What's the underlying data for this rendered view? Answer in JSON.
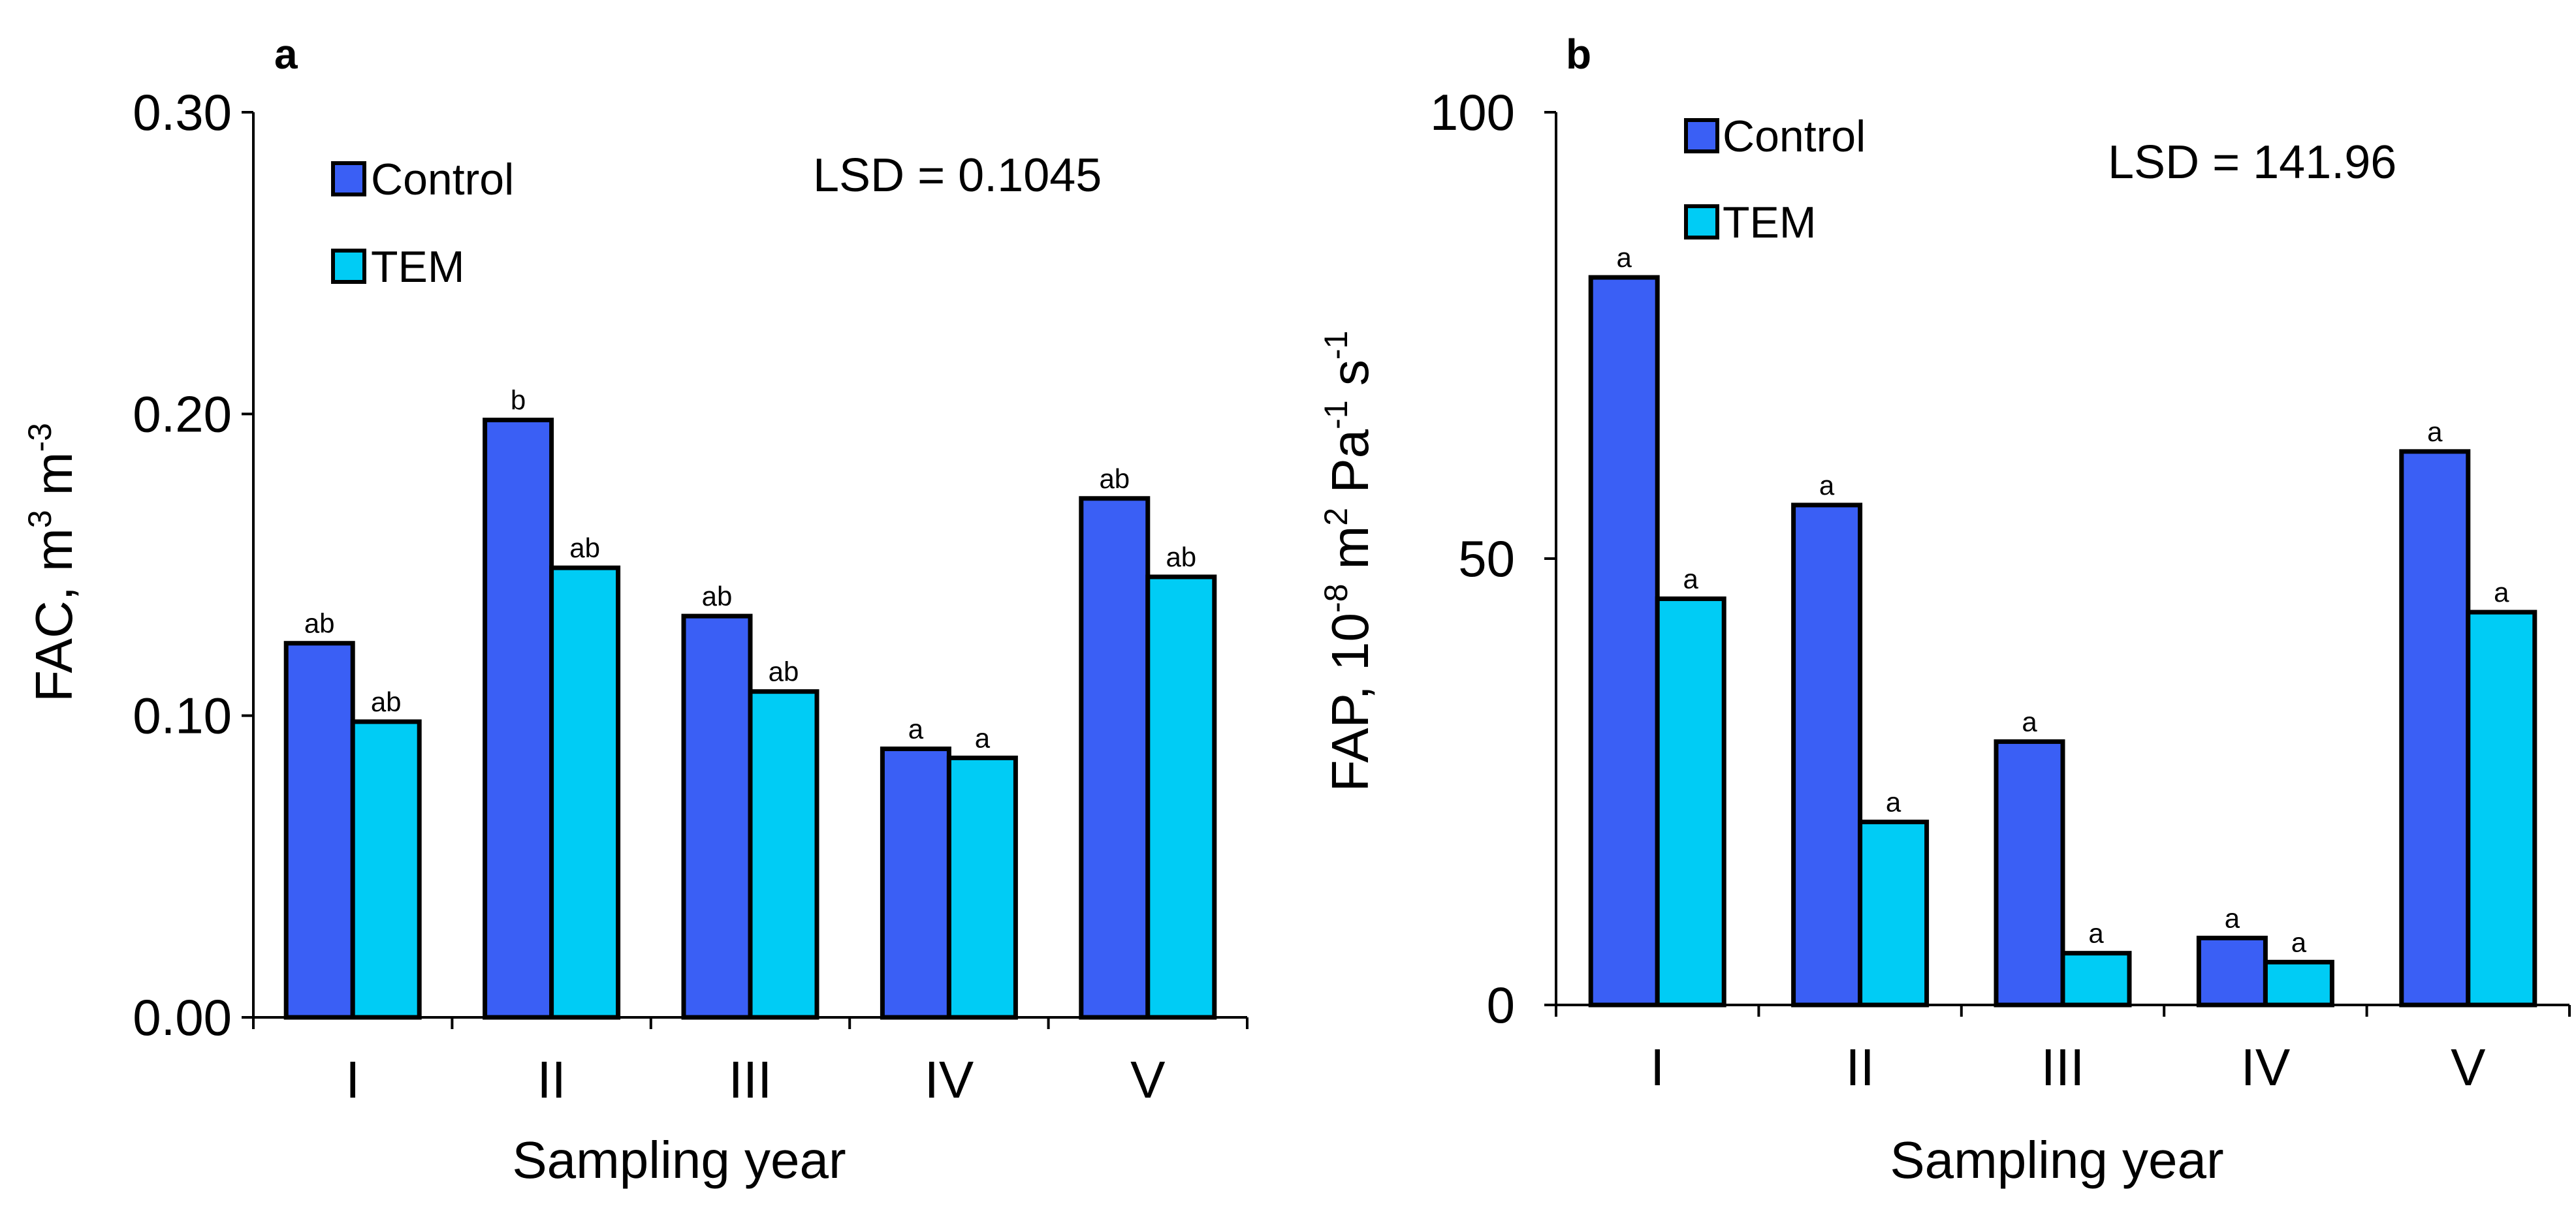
{
  "chart_data": [
    {
      "type": "bar",
      "panel_label": "a",
      "categories": [
        "I",
        "II",
        "III",
        "IV",
        "V"
      ],
      "series": [
        {
          "name": "Control",
          "values": [
            0.124,
            0.198,
            0.133,
            0.089,
            0.172
          ],
          "color": "#3a5ff5"
        },
        {
          "name": "TEM",
          "values": [
            0.098,
            0.149,
            0.108,
            0.086,
            0.146
          ],
          "color": "#00ccf5"
        }
      ],
      "significance_letters": {
        "Control": [
          "ab",
          "b",
          "ab",
          "a",
          "ab"
        ],
        "TEM": [
          "ab",
          "ab",
          "ab",
          "a",
          "ab"
        ]
      },
      "ylim": [
        0,
        0.3
      ],
      "yticks": [
        0.0,
        0.1,
        0.2,
        0.3
      ],
      "ytick_labels": [
        "0.00",
        "0.10",
        "0.20",
        "0.30"
      ],
      "xlabel": "Sampling year",
      "ylabel_main": "FAC, m",
      "ylabel_sup1": "3",
      "ylabel_mid": " m",
      "ylabel_sup2": "-3",
      "annotation": "LSD = 0.1045",
      "legend": [
        "Control",
        "TEM"
      ]
    },
    {
      "type": "bar",
      "panel_label": "b",
      "categories": [
        "I",
        "II",
        "III",
        "IV",
        "V"
      ],
      "series": [
        {
          "name": "Control",
          "values": [
            81.5,
            56,
            29.5,
            7.5,
            62
          ],
          "color": "#3a5ff5"
        },
        {
          "name": "TEM",
          "values": [
            45.5,
            20.5,
            5.8,
            4.8,
            44
          ],
          "color": "#00ccf5"
        }
      ],
      "significance_letters": {
        "Control": [
          "a",
          "a",
          "a",
          "a",
          "a"
        ],
        "TEM": [
          "a",
          "a",
          "a",
          "a",
          "a"
        ]
      },
      "ylim": [
        0,
        100
      ],
      "yticks": [
        0,
        50,
        100
      ],
      "ytick_labels": [
        "0",
        "50",
        "100"
      ],
      "xlabel": "Sampling year",
      "ylabel_main": "FAP, 10",
      "ylabel_sup1": "-8",
      "ylabel_mid": " m",
      "ylabel_sup2": "2",
      "ylabel_mid2": " Pa",
      "ylabel_sup3": "-1",
      "ylabel_mid3": " s",
      "ylabel_sup4": "-1",
      "annotation": "LSD = 141.96",
      "legend": [
        "Control",
        "TEM"
      ]
    }
  ]
}
